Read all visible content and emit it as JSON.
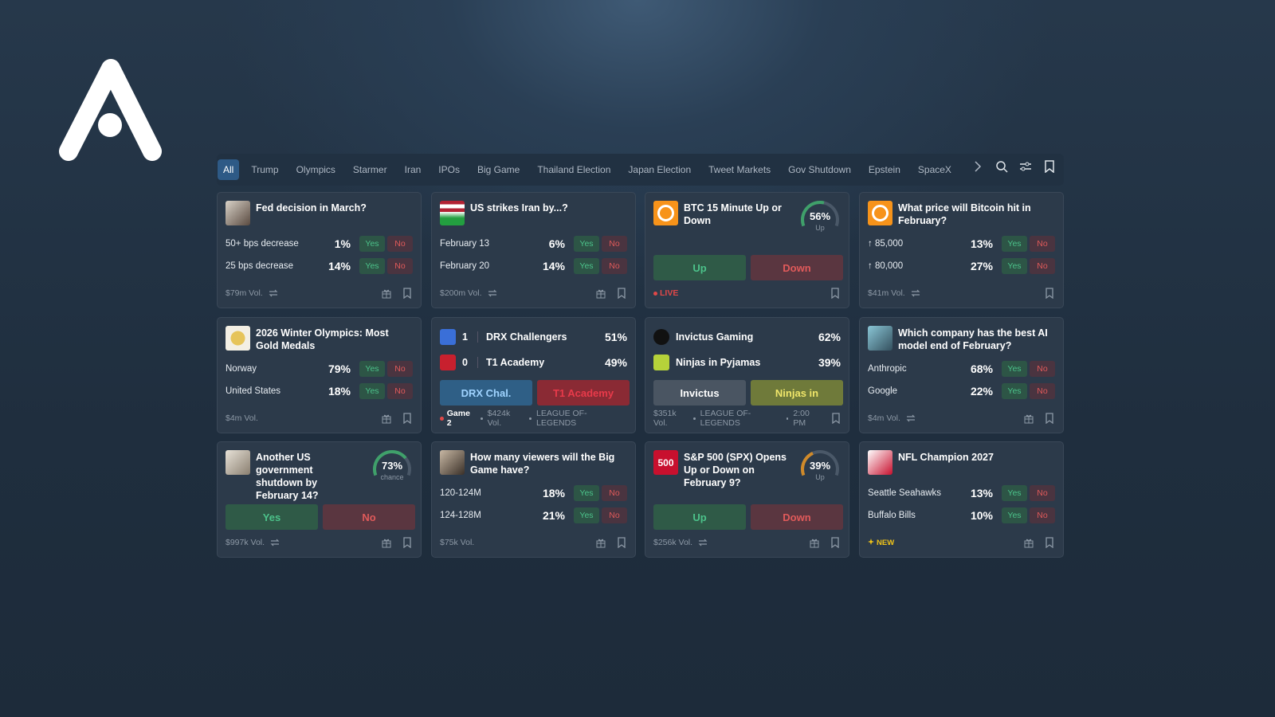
{
  "tabs": [
    "All",
    "Trump",
    "Olympics",
    "Starmer",
    "Iran",
    "IPOs",
    "Big Game",
    "Thailand Election",
    "Japan Election",
    "Tweet Markets",
    "Gov Shutdown",
    "Epstein",
    "SpaceX"
  ],
  "labels": {
    "yes": "Yes",
    "no": "No"
  },
  "cards": [
    {
      "kind": "market",
      "title": "Fed decision in March?",
      "rows": [
        {
          "label": "50+ bps decrease",
          "pct": "1%"
        },
        {
          "label": "25 bps decrease",
          "pct": "14%"
        }
      ],
      "footer": [
        "$79m Vol."
      ]
    },
    {
      "kind": "market",
      "title": "US strikes Iran by...?",
      "rows": [
        {
          "label": "February 13",
          "pct": "6%"
        },
        {
          "label": "February 20",
          "pct": "14%"
        }
      ],
      "footer": [
        "$200m Vol."
      ]
    },
    {
      "kind": "updown",
      "title": "BTC 15 Minute Up or Down",
      "gauge": {
        "value": 56,
        "label": "56%",
        "caption": "Up",
        "color": "#3fa06a"
      },
      "buttons": [
        "Up",
        "Down"
      ],
      "live": "LIVE"
    },
    {
      "kind": "market",
      "title": "What price will Bitcoin hit in February?",
      "rows": [
        {
          "label": "↑ 85,000",
          "pct": "13%"
        },
        {
          "label": "↑ 80,000",
          "pct": "27%"
        }
      ],
      "footer": [
        "$41m Vol."
      ]
    },
    {
      "kind": "market",
      "title": "2026 Winter Olympics: Most Gold Medals",
      "rows": [
        {
          "label": "Norway",
          "pct": "79%"
        },
        {
          "label": "United States",
          "pct": "18%"
        }
      ],
      "footer": [
        "$4m Vol."
      ]
    },
    {
      "kind": "match",
      "teams": [
        {
          "score": "1",
          "name": "DRX Challengers",
          "pct": "51%"
        },
        {
          "score": "0",
          "name": "T1 Academy",
          "pct": "49%"
        }
      ],
      "buttons": [
        "DRX Chal.",
        "T1 Academy"
      ],
      "game": "Game 2",
      "footer": [
        "$424k Vol.",
        "LEAGUE OF-LEGENDS"
      ]
    },
    {
      "kind": "match",
      "teams": [
        {
          "name": "Invictus Gaming",
          "pct": "62%"
        },
        {
          "name": "Ninjas in Pyjamas",
          "pct": "39%"
        }
      ],
      "buttons": [
        "Invictus",
        "Ninjas in"
      ],
      "footer": [
        "$351k Vol.",
        "LEAGUE OF-LEGENDS",
        "2:00 PM"
      ]
    },
    {
      "kind": "market",
      "title": "Which company has the best AI model end of February?",
      "rows": [
        {
          "label": "Anthropic",
          "pct": "68%"
        },
        {
          "label": "Google",
          "pct": "22%"
        }
      ],
      "footer": [
        "$4m Vol."
      ]
    },
    {
      "kind": "updown",
      "title": "Another US government shutdown by February 14?",
      "gauge": {
        "value": 73,
        "label": "73%",
        "caption": "chance",
        "color": "#3fa06a"
      },
      "buttons": [
        "Yes",
        "No"
      ],
      "footer": [
        "$997k Vol."
      ]
    },
    {
      "kind": "market",
      "title": "How many viewers will the Big Game have?",
      "rows": [
        {
          "label": "120-124M",
          "pct": "18%"
        },
        {
          "label": "124-128M",
          "pct": "21%"
        }
      ],
      "footer": [
        "$75k Vol."
      ]
    },
    {
      "kind": "updown",
      "title": "S&P 500 (SPX) Opens Up or Down on February 9?",
      "icon_text": "500",
      "gauge": {
        "value": 39,
        "label": "39%",
        "caption": "Up",
        "color": "#d08a2a"
      },
      "buttons": [
        "Up",
        "Down"
      ],
      "footer": [
        "$256k Vol."
      ]
    },
    {
      "kind": "market",
      "title": "NFL Champion 2027",
      "rows": [
        {
          "label": "Seattle Seahawks",
          "pct": "13%"
        },
        {
          "label": "Buffalo Bills",
          "pct": "10%"
        }
      ],
      "tag": "NEW"
    }
  ]
}
